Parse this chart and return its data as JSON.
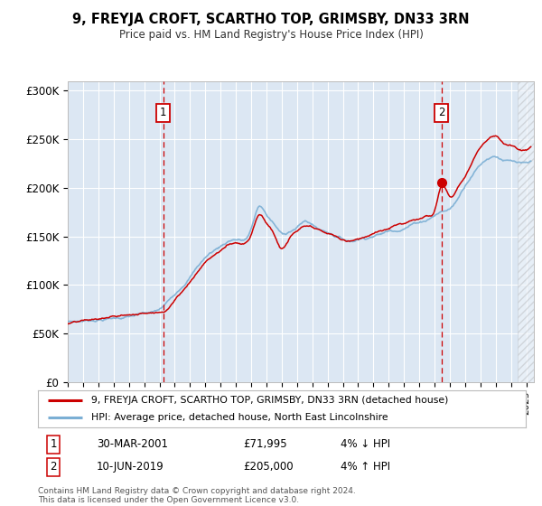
{
  "title": "9, FREYJA CROFT, SCARTHO TOP, GRIMSBY, DN33 3RN",
  "subtitle": "Price paid vs. HM Land Registry's House Price Index (HPI)",
  "legend_line1": "9, FREYJA CROFT, SCARTHO TOP, GRIMSBY, DN33 3RN (detached house)",
  "legend_line2": "HPI: Average price, detached house, North East Lincolnshire",
  "annotation1_label": "1",
  "annotation1_date": "30-MAR-2001",
  "annotation1_price": "£71,995",
  "annotation1_hpi": "4% ↓ HPI",
  "annotation1_year": 2001.25,
  "annotation1_value": 71995,
  "annotation2_label": "2",
  "annotation2_date": "10-JUN-2019",
  "annotation2_price": "£205,000",
  "annotation2_hpi": "4% ↑ HPI",
  "annotation2_year": 2019.45,
  "annotation2_value": 205000,
  "xmin": 1995,
  "xmax": 2025.5,
  "ymin": 0,
  "ymax": 310000,
  "yticks": [
    0,
    50000,
    100000,
    150000,
    200000,
    250000,
    300000
  ],
  "ytick_labels": [
    "£0",
    "£50K",
    "£100K",
    "£150K",
    "£200K",
    "£250K",
    "£300K"
  ],
  "plot_bg_color": "#dce7f3",
  "hpi_color": "#7bafd4",
  "price_color": "#cc0000",
  "dashed_line_color": "#cc0000",
  "footer": "Contains HM Land Registry data © Crown copyright and database right 2024.\nThis data is licensed under the Open Government Licence v3.0.",
  "hatch_start_year": 2024.42
}
